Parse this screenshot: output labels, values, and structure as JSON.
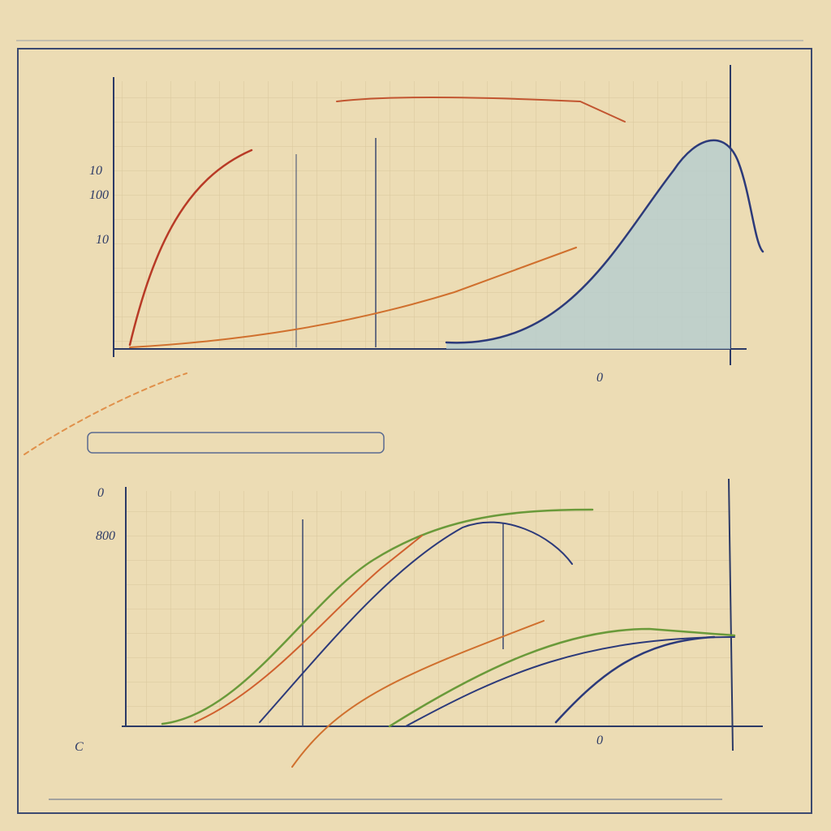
{
  "top_panel": {
    "y_tick_labels": [
      "10",
      "100",
      "10"
    ],
    "axis_note": "0"
  },
  "bottom_panel": {
    "y_tick_labels": [
      "0",
      "800"
    ],
    "x_tick_labels": [
      "C",
      "0"
    ]
  }
}
